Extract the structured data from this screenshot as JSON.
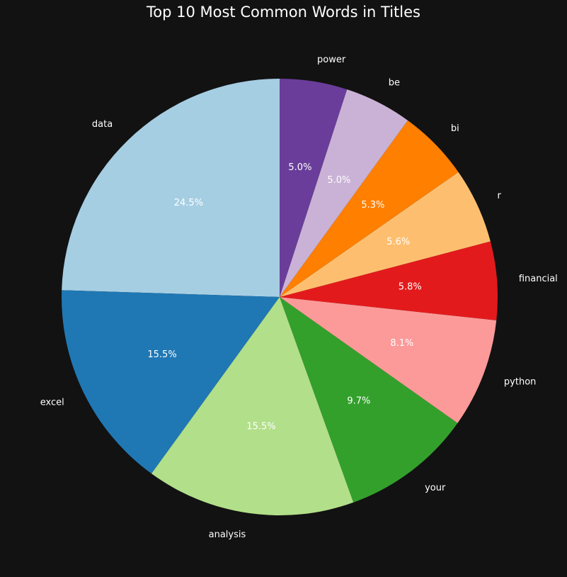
{
  "chart_data": {
    "type": "pie",
    "title": "Top 10 Most Common Words in Titles",
    "start_angle_deg": 90,
    "direction": "counterclockwise",
    "slices": [
      {
        "label": "data",
        "value": 24.5,
        "pct_text": "24.5%",
        "color": "#a6cee3"
      },
      {
        "label": "excel",
        "value": 15.5,
        "pct_text": "15.5%",
        "color": "#1f78b4"
      },
      {
        "label": "analysis",
        "value": 15.5,
        "pct_text": "15.5%",
        "color": "#b2df8a"
      },
      {
        "label": "your",
        "value": 9.7,
        "pct_text": "9.7%",
        "color": "#33a02c"
      },
      {
        "label": "python",
        "value": 8.1,
        "pct_text": "8.1%",
        "color": "#fb9a99"
      },
      {
        "label": "financial",
        "value": 5.8,
        "pct_text": "5.8%",
        "color": "#e31a1c"
      },
      {
        "label": "r",
        "value": 5.6,
        "pct_text": "5.6%",
        "color": "#fdbf6f"
      },
      {
        "label": "bi",
        "value": 5.3,
        "pct_text": "5.3%",
        "color": "#ff7f00"
      },
      {
        "label": "be",
        "value": 5.0,
        "pct_text": "5.0%",
        "color": "#cab2d6"
      },
      {
        "label": "power",
        "value": 5.0,
        "pct_text": "5.0%",
        "color": "#6a3d9a"
      }
    ]
  }
}
